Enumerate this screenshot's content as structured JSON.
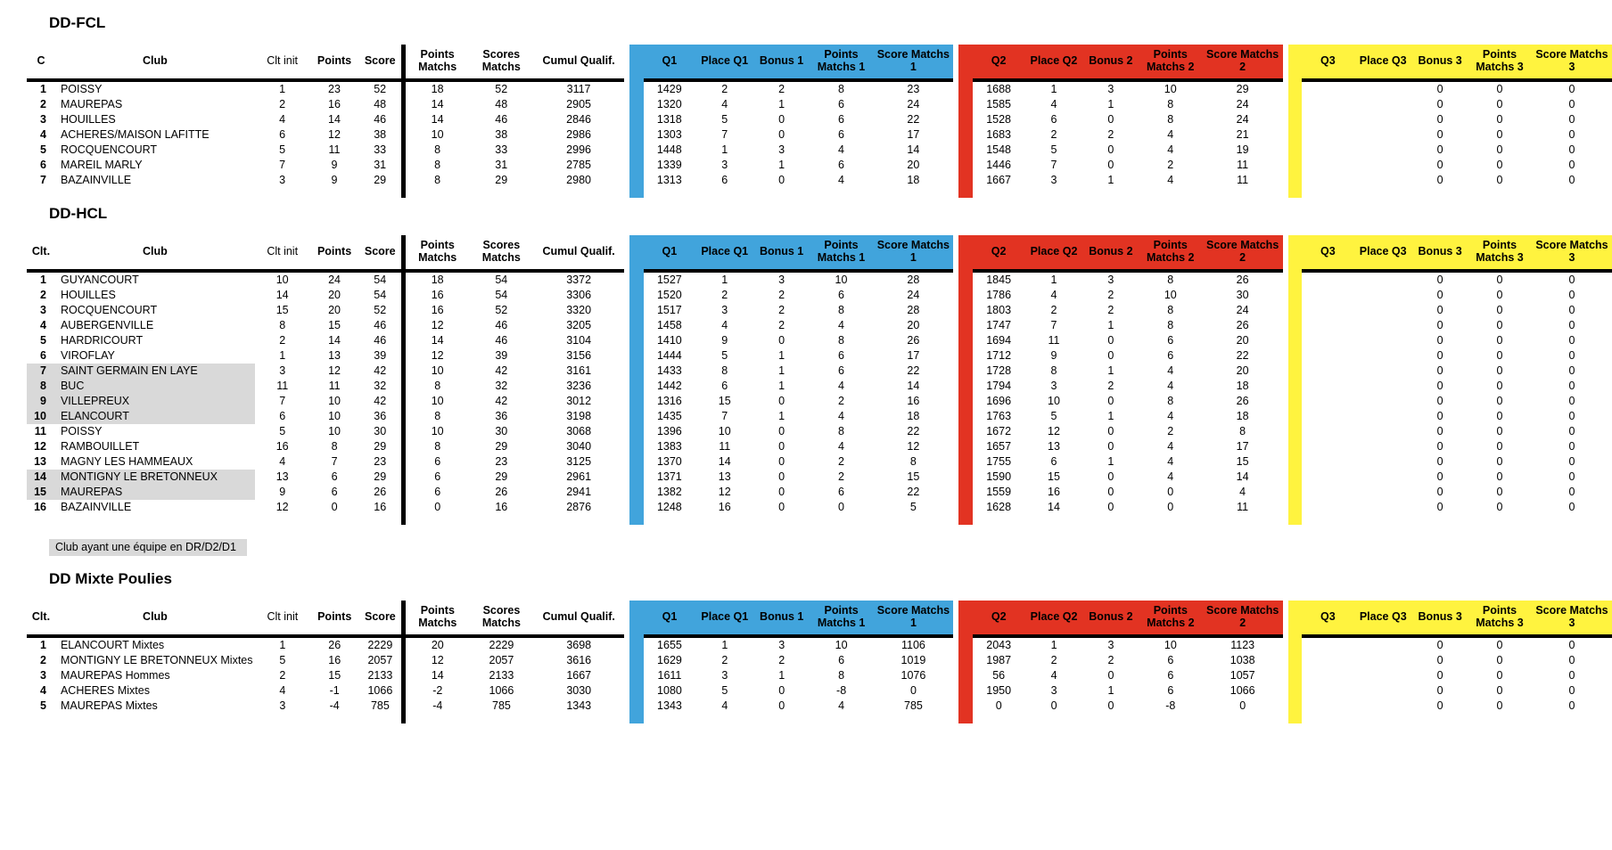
{
  "colors": {
    "q1": "#41A4DC",
    "q2": "#E23322",
    "q3": "#FFF33F",
    "hl": "#D9D9D9"
  },
  "legend": "Club ayant une équipe en DR/D2/D1",
  "column_labels": {
    "club": "Club",
    "clt_init": "Clt init",
    "points": "Points",
    "score": "Score",
    "pts_matchs": "Points\nMatchs",
    "scores_matchs": "Scores\nMatchs",
    "cumul": "Cumul Qualif.",
    "q1": "Q1",
    "q1_place": "Place Q1",
    "q1_bonus": "Bonus 1",
    "q1_pm": "Points\nMatchs 1",
    "q1_sm": "Score Matchs\n1",
    "q2": "Q2",
    "q2_place": "Place Q2",
    "q2_bonus": "Bonus 2",
    "q2_pm": "Points\nMatchs 2",
    "q2_sm": "Score Matchs\n2",
    "q3": "Q3",
    "q3_place": "Place Q3",
    "q3_bonus": "Bonus 3",
    "q3_pm": "Points\nMatchs 3",
    "q3_sm": "Score Matchs\n3"
  },
  "row_fields": [
    "rank",
    "club",
    "clt_init",
    "points",
    "score",
    "pts_matchs",
    "scores_matchs",
    "cumul",
    "q1",
    "q1_place",
    "q1_bonus",
    "q1_pm",
    "q1_sm",
    "q2",
    "q2_place",
    "q2_bonus",
    "q2_pm",
    "q2_sm",
    "q3",
    "q3_place",
    "q3_bonus",
    "q3_pm",
    "q3_sm"
  ],
  "tables": [
    {
      "title": "DD-FCL",
      "rank_label": "C",
      "highlight_rows": [],
      "rows": [
        [
          1,
          "POISSY",
          1,
          23,
          52,
          18,
          52,
          3117,
          1429,
          2,
          2,
          8,
          23,
          1688,
          1,
          3,
          10,
          29,
          "",
          "",
          0,
          0,
          0
        ],
        [
          2,
          "MAUREPAS",
          2,
          16,
          48,
          14,
          48,
          2905,
          1320,
          4,
          1,
          6,
          24,
          1585,
          4,
          1,
          8,
          24,
          "",
          "",
          0,
          0,
          0
        ],
        [
          3,
          "HOUILLES",
          4,
          14,
          46,
          14,
          46,
          2846,
          1318,
          5,
          0,
          6,
          22,
          1528,
          6,
          0,
          8,
          24,
          "",
          "",
          0,
          0,
          0
        ],
        [
          4,
          "ACHERES/MAISON LAFITTE",
          6,
          12,
          38,
          10,
          38,
          2986,
          1303,
          7,
          0,
          6,
          17,
          1683,
          2,
          2,
          4,
          21,
          "",
          "",
          0,
          0,
          0
        ],
        [
          5,
          "ROCQUENCOURT",
          5,
          11,
          33,
          8,
          33,
          2996,
          1448,
          1,
          3,
          4,
          14,
          1548,
          5,
          0,
          4,
          19,
          "",
          "",
          0,
          0,
          0
        ],
        [
          6,
          "MAREIL MARLY",
          7,
          9,
          31,
          8,
          31,
          2785,
          1339,
          3,
          1,
          6,
          20,
          1446,
          7,
          0,
          2,
          11,
          "",
          "",
          0,
          0,
          0
        ],
        [
          7,
          "BAZAINVILLE",
          3,
          9,
          29,
          8,
          29,
          2980,
          1313,
          6,
          0,
          4,
          18,
          1667,
          3,
          1,
          4,
          11,
          "",
          "",
          0,
          0,
          0
        ]
      ]
    },
    {
      "title": "DD-HCL",
      "rank_label": "Clt.",
      "highlight_rows": [
        7,
        8,
        9,
        10,
        14,
        15
      ],
      "rows": [
        [
          1,
          "GUYANCOURT",
          10,
          24,
          54,
          18,
          54,
          3372,
          1527,
          1,
          3,
          10,
          28,
          1845,
          1,
          3,
          8,
          26,
          "",
          "",
          0,
          0,
          0
        ],
        [
          2,
          "HOUILLES",
          14,
          20,
          54,
          16,
          54,
          3306,
          1520,
          2,
          2,
          6,
          24,
          1786,
          4,
          2,
          10,
          30,
          "",
          "",
          0,
          0,
          0
        ],
        [
          3,
          "ROCQUENCOURT",
          15,
          20,
          52,
          16,
          52,
          3320,
          1517,
          3,
          2,
          8,
          28,
          1803,
          2,
          2,
          8,
          24,
          "",
          "",
          0,
          0,
          0
        ],
        [
          4,
          "AUBERGENVILLE",
          8,
          15,
          46,
          12,
          46,
          3205,
          1458,
          4,
          2,
          4,
          20,
          1747,
          7,
          1,
          8,
          26,
          "",
          "",
          0,
          0,
          0
        ],
        [
          5,
          "HARDRICOURT",
          2,
          14,
          46,
          14,
          46,
          3104,
          1410,
          9,
          0,
          8,
          26,
          1694,
          11,
          0,
          6,
          20,
          "",
          "",
          0,
          0,
          0
        ],
        [
          6,
          "VIROFLAY",
          1,
          13,
          39,
          12,
          39,
          3156,
          1444,
          5,
          1,
          6,
          17,
          1712,
          9,
          0,
          6,
          22,
          "",
          "",
          0,
          0,
          0
        ],
        [
          7,
          "SAINT GERMAIN EN LAYE",
          3,
          12,
          42,
          10,
          42,
          3161,
          1433,
          8,
          1,
          6,
          22,
          1728,
          8,
          1,
          4,
          20,
          "",
          "",
          0,
          0,
          0
        ],
        [
          8,
          "BUC",
          11,
          11,
          32,
          8,
          32,
          3236,
          1442,
          6,
          1,
          4,
          14,
          1794,
          3,
          2,
          4,
          18,
          "",
          "",
          0,
          0,
          0
        ],
        [
          9,
          "VILLEPREUX",
          7,
          10,
          42,
          10,
          42,
          3012,
          1316,
          15,
          0,
          2,
          16,
          1696,
          10,
          0,
          8,
          26,
          "",
          "",
          0,
          0,
          0
        ],
        [
          10,
          "ELANCOURT",
          6,
          10,
          36,
          8,
          36,
          3198,
          1435,
          7,
          1,
          4,
          18,
          1763,
          5,
          1,
          4,
          18,
          "",
          "",
          0,
          0,
          0
        ],
        [
          11,
          "POISSY",
          5,
          10,
          30,
          10,
          30,
          3068,
          1396,
          10,
          0,
          8,
          22,
          1672,
          12,
          0,
          2,
          8,
          "",
          "",
          0,
          0,
          0
        ],
        [
          12,
          "RAMBOUILLET",
          16,
          8,
          29,
          8,
          29,
          3040,
          1383,
          11,
          0,
          4,
          12,
          1657,
          13,
          0,
          4,
          17,
          "",
          "",
          0,
          0,
          0
        ],
        [
          13,
          "MAGNY LES HAMMEAUX",
          4,
          7,
          23,
          6,
          23,
          3125,
          1370,
          14,
          0,
          2,
          8,
          1755,
          6,
          1,
          4,
          15,
          "",
          "",
          0,
          0,
          0
        ],
        [
          14,
          "MONTIGNY LE BRETONNEUX",
          13,
          6,
          29,
          6,
          29,
          2961,
          1371,
          13,
          0,
          2,
          15,
          1590,
          15,
          0,
          4,
          14,
          "",
          "",
          0,
          0,
          0
        ],
        [
          15,
          "MAUREPAS",
          9,
          6,
          26,
          6,
          26,
          2941,
          1382,
          12,
          0,
          6,
          22,
          1559,
          16,
          0,
          0,
          4,
          "",
          "",
          0,
          0,
          0
        ],
        [
          16,
          "BAZAINVILLE",
          12,
          0,
          16,
          0,
          16,
          2876,
          1248,
          16,
          0,
          0,
          5,
          1628,
          14,
          0,
          0,
          11,
          "",
          "",
          0,
          0,
          0
        ]
      ]
    },
    {
      "title": "DD Mixte Poulies",
      "rank_label": "Clt.",
      "highlight_rows": [],
      "rows": [
        [
          1,
          "ELANCOURT Mixtes",
          1,
          26,
          2229,
          20,
          2229,
          3698,
          1655,
          1,
          3,
          10,
          1106,
          2043,
          1,
          3,
          10,
          1123,
          "",
          "",
          0,
          0,
          0
        ],
        [
          2,
          "MONTIGNY LE BRETONNEUX Mixtes",
          5,
          16,
          2057,
          12,
          2057,
          3616,
          1629,
          2,
          2,
          6,
          1019,
          1987,
          2,
          2,
          6,
          1038,
          "",
          "",
          0,
          0,
          0
        ],
        [
          3,
          "MAUREPAS Hommes",
          2,
          15,
          2133,
          14,
          2133,
          1667,
          1611,
          3,
          1,
          8,
          1076,
          56,
          4,
          0,
          6,
          1057,
          "",
          "",
          0,
          0,
          0
        ],
        [
          4,
          "ACHERES Mixtes",
          4,
          -1,
          1066,
          -2,
          1066,
          3030,
          1080,
          5,
          0,
          -8,
          0,
          1950,
          3,
          1,
          6,
          1066,
          "",
          "",
          0,
          0,
          0
        ],
        [
          5,
          "MAUREPAS Mixtes",
          3,
          -4,
          785,
          -4,
          785,
          1343,
          1343,
          4,
          0,
          4,
          785,
          0,
          0,
          0,
          -8,
          0,
          "",
          "",
          0,
          0,
          0
        ]
      ]
    }
  ]
}
